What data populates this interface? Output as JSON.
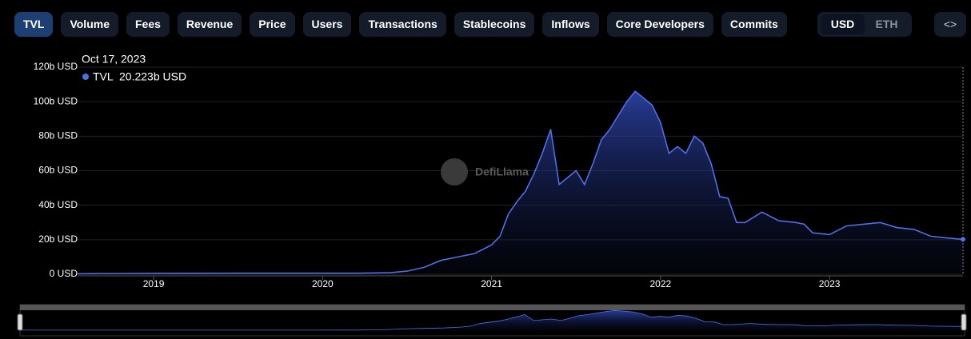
{
  "tabs": [
    "TVL",
    "Volume",
    "Fees",
    "Revenue",
    "Price",
    "Users",
    "Transactions",
    "Stablecoins",
    "Inflows",
    "Core Developers",
    "Commits"
  ],
  "active_tab": 0,
  "currencies": [
    "USD",
    "ETH"
  ],
  "active_currency": 0,
  "embed_button": "<>",
  "watermark": "DefiLlama",
  "chart_data": {
    "type": "area",
    "x": [
      2018.55,
      2019,
      2019.5,
      2020,
      2020.2,
      2020.4,
      2020.5,
      2020.6,
      2020.7,
      2020.8,
      2020.9,
      2021,
      2021.05,
      2021.1,
      2021.15,
      2021.2,
      2021.25,
      2021.3,
      2021.35,
      2021.4,
      2021.45,
      2021.5,
      2021.55,
      2021.6,
      2021.65,
      2021.7,
      2021.75,
      2021.8,
      2021.85,
      2021.9,
      2021.95,
      2022,
      2022.05,
      2022.1,
      2022.15,
      2022.2,
      2022.25,
      2022.3,
      2022.35,
      2022.4,
      2022.45,
      2022.5,
      2022.6,
      2022.7,
      2022.8,
      2022.85,
      2022.9,
      2023,
      2023.1,
      2023.2,
      2023.3,
      2023.4,
      2023.5,
      2023.6,
      2023.7,
      2023.79
    ],
    "series": [
      {
        "name": "TVL",
        "color": "#4f6fe6",
        "values": [
          0.3,
          0.5,
          0.6,
          0.6,
          0.6,
          0.9,
          1.8,
          4,
          8,
          10,
          12,
          17,
          22,
          35,
          42,
          48,
          58,
          70,
          84,
          52,
          56,
          60,
          52,
          64,
          78,
          84,
          92,
          100,
          106,
          102,
          98,
          88,
          70,
          74,
          70,
          80,
          76,
          64,
          45,
          44,
          30,
          30,
          36,
          31,
          30,
          29,
          24,
          23,
          28,
          29,
          30,
          27,
          26,
          22,
          21,
          20.223
        ]
      }
    ],
    "xlim": [
      2018.55,
      2023.79
    ],
    "xticks": [
      2019,
      2020,
      2021,
      2022,
      2023
    ],
    "ylim": [
      0,
      120
    ],
    "yticks": [
      {
        "value": 0,
        "label": "0 USD"
      },
      {
        "value": 20,
        "label": "20b USD"
      },
      {
        "value": 40,
        "label": "40b USD"
      },
      {
        "value": 60,
        "label": "60b USD"
      },
      {
        "value": 80,
        "label": "80b USD"
      },
      {
        "value": 100,
        "label": "100b USD"
      },
      {
        "value": 120,
        "label": "120b USD"
      }
    ],
    "grid": true,
    "tooltip": {
      "date": "Oct 17, 2023",
      "value": 20.223,
      "label": "20.223b USD"
    }
  }
}
